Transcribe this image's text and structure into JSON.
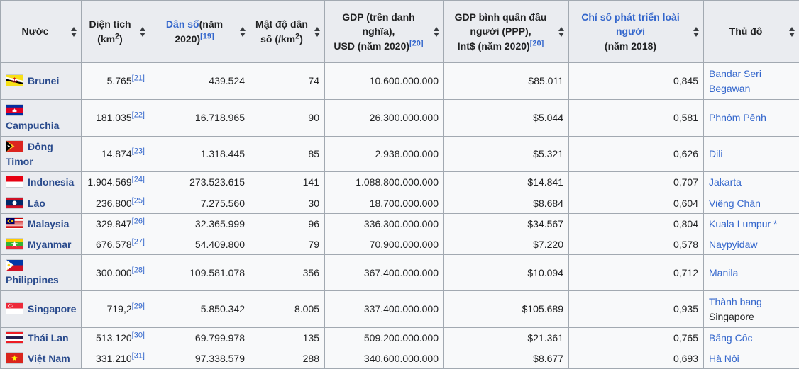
{
  "colors": {
    "link_blue": "#3366cc",
    "header_bg": "#eaecf0",
    "cell_bg": "#f8f9fa",
    "border": "#a2a9b1",
    "text": "#202122"
  },
  "table": {
    "sort_icon": "up-down-sort-arrows",
    "columns": [
      {
        "id": "country",
        "segments": [
          {
            "t": "Nước"
          }
        ]
      },
      {
        "id": "area",
        "segments": [
          {
            "t": "Diện tích ("
          },
          {
            "t": "km",
            "supAfter": "2",
            "abbr": true
          },
          {
            "t": ")"
          }
        ]
      },
      {
        "id": "population",
        "segments": [
          {
            "t": "Dân số",
            "link": true
          },
          {
            "t": "(năm 2020)"
          },
          {
            "t": "[19]",
            "sup": true,
            "link": true
          }
        ]
      },
      {
        "id": "density",
        "segments": [
          {
            "t": "Mật độ dân số (/"
          },
          {
            "t": "km",
            "supAfter": "2",
            "abbr": true
          },
          {
            "t": ")"
          }
        ]
      },
      {
        "id": "gdp",
        "segments": [
          {
            "t": "GDP (trên danh nghĩa),"
          },
          {
            "br": true
          },
          {
            "t": "USD (năm 2020)"
          },
          {
            "t": "[20]",
            "sup": true,
            "link": true
          }
        ]
      },
      {
        "id": "gdp_ppp",
        "segments": [
          {
            "t": "GDP bình quân đầu người (PPP),"
          },
          {
            "br": true
          },
          {
            "t": "Int$ (năm 2020)"
          },
          {
            "t": "[20]",
            "sup": true,
            "link": true
          }
        ]
      },
      {
        "id": "hdi",
        "segments": [
          {
            "t": "Chỉ số phát triển loài người",
            "link": true
          },
          {
            "br": true
          },
          {
            "t": "(năm 2018)"
          }
        ]
      },
      {
        "id": "capital",
        "segments": [
          {
            "t": "Thủ đô"
          }
        ]
      }
    ],
    "rows": [
      {
        "country": "Brunei",
        "flag": "brunei",
        "area": "5.765",
        "area_ref": "[21]",
        "population": "439.524",
        "density": "74",
        "gdp": "10.600.000.000",
        "gdp_ppp": "$85.011",
        "hdi": "0,845",
        "capital_link": "Bandar Seri Begawan",
        "capital_extra": ""
      },
      {
        "country": "Campuchia",
        "flag": "cambodia",
        "area": "181.035",
        "area_ref": "[22]",
        "population": "16.718.965",
        "density": "90",
        "gdp": "26.300.000.000",
        "gdp_ppp": "$5.044",
        "hdi": "0,581",
        "capital_link": "Phnôm Pênh",
        "capital_extra": ""
      },
      {
        "country": "Đông Timor",
        "flag": "easttimor",
        "area": "14.874",
        "area_ref": "[23]",
        "population": "1.318.445",
        "density": "85",
        "gdp": "2.938.000.000",
        "gdp_ppp": "$5.321",
        "hdi": "0,626",
        "capital_link": "Dili",
        "capital_extra": ""
      },
      {
        "country": "Indonesia",
        "flag": "indonesia",
        "area": "1.904.569",
        "area_ref": "[24]",
        "population": "273.523.615",
        "density": "141",
        "gdp": "1.088.800.000.000",
        "gdp_ppp": "$14.841",
        "hdi": "0,707",
        "capital_link": "Jakarta",
        "capital_extra": ""
      },
      {
        "country": "Lào",
        "flag": "laos",
        "area": "236.800",
        "area_ref": "[25]",
        "population": "7.275.560",
        "density": "30",
        "gdp": "18.700.000.000",
        "gdp_ppp": "$8.684",
        "hdi": "0,604",
        "capital_link": "Viêng Chăn",
        "capital_extra": ""
      },
      {
        "country": "Malaysia",
        "flag": "malaysia",
        "area": "329.847",
        "area_ref": "[26]",
        "population": "32.365.999",
        "density": "96",
        "gdp": "336.300.000.000",
        "gdp_ppp": "$34.567",
        "hdi": "0,804",
        "capital_link": "Kuala Lumpur *",
        "capital_extra": ""
      },
      {
        "country": "Myanmar",
        "flag": "myanmar",
        "area": "676.578",
        "area_ref": "[27]",
        "population": "54.409.800",
        "density": "79",
        "gdp": "70.900.000.000",
        "gdp_ppp": "$7.220",
        "hdi": "0,578",
        "capital_link": "Naypyidaw",
        "capital_extra": ""
      },
      {
        "country": "Philippines",
        "flag": "philippines",
        "area": "300.000",
        "area_ref": "[28]",
        "population": "109.581.078",
        "density": "356",
        "gdp": "367.400.000.000",
        "gdp_ppp": "$10.094",
        "hdi": "0,712",
        "capital_link": "Manila",
        "capital_extra": ""
      },
      {
        "country": "Singapore",
        "flag": "singapore",
        "area": "719,2",
        "area_ref": "[29]",
        "population": "5.850.342",
        "density": "8.005",
        "gdp": "337.400.000.000",
        "gdp_ppp": "$105.689",
        "hdi": "0,935",
        "capital_link": "Thành bang",
        "capital_extra": "Singapore"
      },
      {
        "country": "Thái Lan",
        "flag": "thailand",
        "area": "513.120",
        "area_ref": "[30]",
        "population": "69.799.978",
        "density": "135",
        "gdp": "509.200.000.000",
        "gdp_ppp": "$21.361",
        "hdi": "0,765",
        "capital_link": "Băng Cốc",
        "capital_extra": ""
      },
      {
        "country": "Việt Nam",
        "flag": "vietnam",
        "area": "331.210",
        "area_ref": "[31]",
        "population": "97.338.579",
        "density": "288",
        "gdp": "340.600.000.000",
        "gdp_ppp": "$8.677",
        "hdi": "0,693",
        "capital_link": "Hà Nội",
        "capital_extra": ""
      }
    ]
  }
}
